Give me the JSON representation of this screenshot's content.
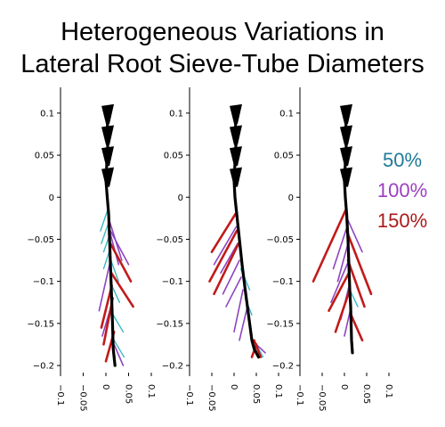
{
  "title_line1": "Heterogeneous Variations in",
  "title_line2": "Lateral Root Sieve-Tube Diameters",
  "legend": [
    {
      "label": "50%",
      "color": "#1f7a99"
    },
    {
      "label": "100%",
      "color": "#9b3fc1"
    },
    {
      "label": "150%",
      "color": "#aa1a1a"
    }
  ],
  "colors": {
    "axis": "#000000",
    "main_root": "#000000",
    "lateral_50": "#3bb8c3",
    "lateral_100": "#8e44c0",
    "lateral_150": "#c11a1a"
  },
  "chart_data": [
    {
      "type": "line",
      "panel": "left",
      "xlim": [
        -0.1,
        0.1
      ],
      "ylim": [
        -0.2,
        0.12
      ],
      "xticks": [
        "−0.1",
        "−0.05",
        "0",
        "0.05",
        "0.1"
      ],
      "yticks": [
        {
          "value": 0.1,
          "label": "0.1"
        },
        {
          "value": 0.05,
          "label": "0.05"
        },
        {
          "value": 0,
          "label": "0"
        },
        {
          "value": -0.05,
          "label": "−0.05"
        },
        {
          "value": -0.1,
          "label": "−0.1"
        },
        {
          "value": -0.15,
          "label": "−0.15"
        },
        {
          "value": -0.2,
          "label": "−0.2"
        }
      ],
      "main_root": {
        "x": [
          0.005,
          0.003,
          0.004,
          0.002,
          0.0,
          0.003,
          0.006,
          0.008,
          0.01,
          0.012,
          0.014,
          0.015,
          0.016,
          0.018,
          0.02
        ],
        "y": [
          0.105,
          0.08,
          0.06,
          0.04,
          0.02,
          0.0,
          -0.02,
          -0.05,
          -0.08,
          -0.11,
          -0.14,
          -0.16,
          -0.18,
          -0.19,
          -0.2
        ]
      },
      "laterals": [
        {
          "group": "50%",
          "x": [
            0.004,
            -0.012
          ],
          "y": [
            -0.015,
            -0.04
          ]
        },
        {
          "group": "50%",
          "x": [
            0.006,
            -0.01
          ],
          "y": [
            -0.03,
            -0.055
          ]
        },
        {
          "group": "50%",
          "x": [
            0.008,
            -0.005
          ],
          "y": [
            -0.045,
            -0.065
          ]
        },
        {
          "group": "50%",
          "x": [
            0.01,
            -0.005
          ],
          "y": [
            -0.06,
            -0.085
          ]
        },
        {
          "group": "50%",
          "x": [
            0.011,
            0.028
          ],
          "y": [
            -0.075,
            -0.1
          ]
        },
        {
          "group": "50%",
          "x": [
            0.013,
            0.03
          ],
          "y": [
            -0.105,
            -0.125
          ]
        },
        {
          "group": "50%",
          "x": [
            0.016,
            0.038
          ],
          "y": [
            -0.14,
            -0.16
          ]
        },
        {
          "group": "50%",
          "x": [
            0.018,
            0.04
          ],
          "y": [
            -0.17,
            -0.19
          ]
        },
        {
          "group": "100%",
          "x": [
            0.006,
            0.035
          ],
          "y": [
            -0.025,
            -0.075
          ]
        },
        {
          "group": "100%",
          "x": [
            0.008,
            0.028
          ],
          "y": [
            -0.04,
            -0.08
          ]
        },
        {
          "group": "100%",
          "x": [
            0.01,
            0.05
          ],
          "y": [
            -0.04,
            -0.08
          ]
        },
        {
          "group": "100%",
          "x": [
            0.01,
            -0.015
          ],
          "y": [
            -0.075,
            -0.135
          ]
        },
        {
          "group": "100%",
          "x": [
            0.014,
            -0.008
          ],
          "y": [
            -0.125,
            -0.165
          ]
        },
        {
          "group": "100%",
          "x": [
            0.018,
            0.038
          ],
          "y": [
            -0.175,
            -0.2
          ]
        },
        {
          "group": "150%",
          "x": [
            0.01,
            0.055
          ],
          "y": [
            -0.055,
            -0.1
          ]
        },
        {
          "group": "150%",
          "x": [
            0.012,
            0.06
          ],
          "y": [
            -0.09,
            -0.13
          ]
        },
        {
          "group": "150%",
          "x": [
            0.013,
            -0.01
          ],
          "y": [
            -0.105,
            -0.155
          ]
        },
        {
          "group": "150%",
          "x": [
            0.015,
            -0.005
          ],
          "y": [
            -0.12,
            -0.175
          ]
        },
        {
          "group": "150%",
          "x": [
            0.018,
            0.0
          ],
          "y": [
            -0.16,
            -0.195
          ]
        }
      ]
    },
    {
      "type": "line",
      "panel": "middle",
      "xlim": [
        -0.1,
        0.1
      ],
      "ylim": [
        -0.2,
        0.12
      ],
      "xticks": [
        "−0.1",
        "−0.05",
        "0",
        "0.05",
        "0.1"
      ],
      "yticks": [
        {
          "value": 0.1,
          "label": "0.1"
        },
        {
          "value": 0.05,
          "label": "0.05"
        },
        {
          "value": 0,
          "label": "0"
        },
        {
          "value": -0.05,
          "label": "−0.05"
        },
        {
          "value": -0.1,
          "label": "−0.1"
        },
        {
          "value": -0.15,
          "label": "−0.15"
        },
        {
          "value": -0.2,
          "label": "−0.2"
        }
      ],
      "main_root": {
        "x": [
          0.005,
          0.003,
          0.004,
          0.002,
          0.0,
          0.002,
          0.006,
          0.012,
          0.018,
          0.025,
          0.03,
          0.035,
          0.04,
          0.045,
          0.055
        ],
        "y": [
          0.105,
          0.08,
          0.06,
          0.04,
          0.02,
          0.0,
          -0.02,
          -0.05,
          -0.08,
          -0.11,
          -0.13,
          -0.15,
          -0.17,
          -0.18,
          -0.19
        ]
      },
      "laterals": [
        {
          "group": "50%",
          "x": [
            0.015,
            0.035
          ],
          "y": [
            -0.085,
            -0.11
          ]
        },
        {
          "group": "50%",
          "x": [
            0.025,
            0.04
          ],
          "y": [
            -0.12,
            -0.14
          ]
        },
        {
          "group": "50%",
          "x": [
            0.045,
            0.065
          ],
          "y": [
            -0.17,
            -0.19
          ]
        },
        {
          "group": "100%",
          "x": [
            0.005,
            -0.045
          ],
          "y": [
            -0.035,
            -0.08
          ]
        },
        {
          "group": "100%",
          "x": [
            0.008,
            -0.03
          ],
          "y": [
            -0.055,
            -0.09
          ]
        },
        {
          "group": "100%",
          "x": [
            0.012,
            -0.025
          ],
          "y": [
            -0.075,
            -0.115
          ]
        },
        {
          "group": "100%",
          "x": [
            0.016,
            -0.018
          ],
          "y": [
            -0.095,
            -0.13
          ]
        },
        {
          "group": "100%",
          "x": [
            0.02,
            0.0
          ],
          "y": [
            -0.11,
            -0.16
          ]
        },
        {
          "group": "100%",
          "x": [
            0.03,
            0.012
          ],
          "y": [
            -0.13,
            -0.17
          ]
        },
        {
          "group": "100%",
          "x": [
            0.04,
            0.07
          ],
          "y": [
            -0.17,
            -0.185
          ]
        },
        {
          "group": "150%",
          "x": [
            0.003,
            -0.05
          ],
          "y": [
            -0.02,
            -0.065
          ]
        },
        {
          "group": "150%",
          "x": [
            0.006,
            -0.055
          ],
          "y": [
            -0.04,
            -0.1
          ]
        },
        {
          "group": "150%",
          "x": [
            0.01,
            -0.045
          ],
          "y": [
            -0.055,
            -0.115
          ]
        },
        {
          "group": "150%",
          "x": [
            0.045,
            0.06
          ],
          "y": [
            -0.17,
            -0.19
          ]
        },
        {
          "group": "150%",
          "x": [
            0.05,
            0.04
          ],
          "y": [
            -0.175,
            -0.19
          ]
        }
      ]
    },
    {
      "type": "line",
      "panel": "right",
      "xlim": [
        -0.1,
        0.1
      ],
      "ylim": [
        -0.2,
        0.12
      ],
      "xticks": [
        "−0.1",
        "−0.05",
        "0",
        "0.05",
        "0.1"
      ],
      "yticks": [
        {
          "value": 0.1,
          "label": "0.1"
        },
        {
          "value": 0.05,
          "label": "0.05"
        },
        {
          "value": 0,
          "label": "0"
        },
        {
          "value": -0.05,
          "label": "−0.05"
        },
        {
          "value": -0.1,
          "label": "−0.1"
        },
        {
          "value": -0.15,
          "label": "−0.15"
        },
        {
          "value": -0.2,
          "label": "−0.2"
        }
      ],
      "main_root": {
        "x": [
          0.005,
          0.003,
          0.004,
          0.002,
          0.0,
          0.002,
          0.005,
          0.008,
          0.01,
          0.012,
          0.014,
          0.015,
          0.016,
          0.018
        ],
        "y": [
          0.105,
          0.08,
          0.06,
          0.04,
          0.02,
          0.0,
          -0.02,
          -0.05,
          -0.08,
          -0.11,
          -0.13,
          -0.15,
          -0.17,
          -0.185
        ]
      },
      "laterals": [
        {
          "group": "50%",
          "x": [
            0.012,
            0.03
          ],
          "y": [
            -0.11,
            -0.13
          ]
        },
        {
          "group": "100%",
          "x": [
            0.006,
            0.04
          ],
          "y": [
            -0.025,
            -0.065
          ]
        },
        {
          "group": "100%",
          "x": [
            0.006,
            -0.025
          ],
          "y": [
            -0.035,
            -0.085
          ]
        },
        {
          "group": "100%",
          "x": [
            0.008,
            -0.015
          ],
          "y": [
            -0.055,
            -0.1
          ]
        },
        {
          "group": "100%",
          "x": [
            0.01,
            -0.03
          ],
          "y": [
            -0.075,
            -0.125
          ]
        },
        {
          "group": "100%",
          "x": [
            0.013,
            -0.008
          ],
          "y": [
            -0.1,
            -0.145
          ]
        },
        {
          "group": "100%",
          "x": [
            0.015,
            0.0
          ],
          "y": [
            -0.13,
            -0.165
          ]
        },
        {
          "group": "150%",
          "x": [
            0.003,
            -0.07
          ],
          "y": [
            -0.015,
            -0.1
          ]
        },
        {
          "group": "150%",
          "x": [
            0.005,
            0.06
          ],
          "y": [
            -0.04,
            -0.115
          ]
        },
        {
          "group": "150%",
          "x": [
            0.008,
            0.045
          ],
          "y": [
            -0.075,
            -0.13
          ]
        },
        {
          "group": "150%",
          "x": [
            0.01,
            -0.035
          ],
          "y": [
            -0.09,
            -0.135
          ]
        },
        {
          "group": "150%",
          "x": [
            0.012,
            -0.02
          ],
          "y": [
            -0.11,
            -0.16
          ]
        },
        {
          "group": "150%",
          "x": [
            0.015,
            0.04
          ],
          "y": [
            -0.14,
            -0.17
          ]
        }
      ]
    }
  ]
}
